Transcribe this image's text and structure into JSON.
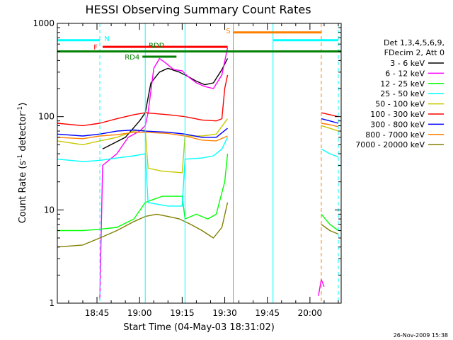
{
  "chart_data": {
    "type": "line",
    "title": "HESSI Observing Summary Count Rates",
    "xlabel": "Start Time (04-May-03 18:31:02)",
    "ylabel_parts": [
      "Count Rate (s",
      "-1",
      " detector",
      "-1",
      ")"
    ],
    "ylabel": "Count Rate (s^-1 detector^-1)",
    "yscale": "log",
    "ylim": [
      1,
      1000
    ],
    "xlim": [
      "18:31:02",
      "20:11:00"
    ],
    "x_ticks": [
      "18:45",
      "19:00",
      "19:15",
      "19:30",
      "19:45",
      "20:00"
    ],
    "y_ticks": [
      "1",
      "10",
      "100",
      "1000"
    ],
    "timestamp": "26-Nov-2009 15:38",
    "legend": {
      "position": "right",
      "header": [
        "Det 1,3,4,5,6,9,",
        "FDecim 2, Att 0"
      ],
      "entries": [
        {
          "label": "3 - 6 keV",
          "color": "#000000"
        },
        {
          "label": "6 - 12 keV",
          "color": "#ff00ff"
        },
        {
          "label": "12 - 25 keV",
          "color": "#00ff00"
        },
        {
          "label": "25 - 50 keV",
          "color": "#00ffff"
        },
        {
          "label": "50 - 100 keV",
          "color": "#c8c800"
        },
        {
          "label": "100 - 300 keV",
          "color": "#ff0000"
        },
        {
          "label": "300 - 800 keV",
          "color": "#0000ff"
        },
        {
          "label": "800 - 7000 keV",
          "color": "#ff8000"
        },
        {
          "label": "7000 - 20000 keV",
          "color": "#808000"
        }
      ]
    },
    "flags": [
      {
        "label": "N",
        "color": "#00ffff",
        "level": 660,
        "spans": [
          [
            "18:31",
            "18:46"
          ],
          [
            "19:47",
            "20:10"
          ]
        ]
      },
      {
        "label": "F",
        "color": "#ff0000",
        "level": 560,
        "spans": [
          [
            "18:47",
            "19:31"
          ]
        ]
      },
      {
        "label": "S",
        "color": "#ff8000",
        "level": 800,
        "spans": [
          [
            "19:33",
            "20:04"
          ]
        ]
      },
      {
        "label": "RDD",
        "color": "#008000",
        "level": 500,
        "spans": [
          [
            "18:31",
            "20:11"
          ]
        ]
      },
      {
        "label": "RD4",
        "color": "#008000",
        "level": 440,
        "spans": [
          [
            "19:01",
            "19:13"
          ]
        ]
      }
    ],
    "vlines": [
      {
        "time": "18:46",
        "color": "#00ffff",
        "style": "dashed"
      },
      {
        "time": "19:02",
        "color": "#00ffff",
        "style": "solid"
      },
      {
        "time": "19:16",
        "color": "#00ffff",
        "style": "solid"
      },
      {
        "time": "19:33",
        "color": "#ff8000",
        "style": "solid"
      },
      {
        "time": "19:47",
        "color": "#00ffff",
        "style": "solid"
      },
      {
        "time": "20:04",
        "color": "#ff8000",
        "style": "dashed"
      },
      {
        "time": "20:10",
        "color": "#00ffff",
        "style": "dashed"
      }
    ],
    "series": [
      {
        "name": "3 - 6 keV",
        "color": "#000000",
        "segments": [
          [
            [
              "18:47",
              45
            ],
            [
              "18:55",
              60
            ],
            [
              "19:00",
              90
            ],
            [
              "19:02",
              110
            ],
            [
              "19:04",
              230
            ],
            [
              "19:07",
              300
            ],
            [
              "19:10",
              330
            ],
            [
              "19:14",
              300
            ],
            [
              "19:17",
              270
            ],
            [
              "19:20",
              240
            ],
            [
              "19:23",
              220
            ],
            [
              "19:26",
              230
            ],
            [
              "19:29",
              320
            ],
            [
              "19:31",
              420
            ]
          ]
        ]
      },
      {
        "name": "6 - 12 keV",
        "color": "#ff00ff",
        "segments": [
          [
            [
              "18:46",
              1.1
            ],
            [
              "18:47",
              30
            ],
            [
              "18:52",
              40
            ],
            [
              "18:56",
              60
            ],
            [
              "19:00",
              70
            ],
            [
              "19:02",
              80
            ],
            [
              "19:03",
              110
            ],
            [
              "19:05",
              330
            ],
            [
              "19:07",
              420
            ],
            [
              "19:09",
              380
            ],
            [
              "19:12",
              320
            ],
            [
              "19:15",
              310
            ],
            [
              "19:17",
              270
            ],
            [
              "19:20",
              230
            ],
            [
              "19:23",
              210
            ],
            [
              "19:26",
              200
            ],
            [
              "19:29",
              280
            ],
            [
              "19:31",
              550
            ]
          ],
          [
            [
              "20:03",
              1.2
            ],
            [
              "20:04",
              1.8
            ],
            [
              "20:05",
              1.5
            ]
          ]
        ]
      },
      {
        "name": "12 - 25 keV",
        "color": "#00ff00",
        "segments": [
          [
            [
              "18:31",
              6.0
            ],
            [
              "18:40",
              6.0
            ],
            [
              "18:46",
              6.2
            ],
            [
              "18:52",
              6.5
            ],
            [
              "18:58",
              8.0
            ],
            [
              "19:02",
              12
            ],
            [
              "19:05",
              13
            ],
            [
              "19:08",
              14
            ],
            [
              "19:12",
              14
            ],
            [
              "19:15",
              14
            ],
            [
              "19:16",
              8
            ],
            [
              "19:20",
              9
            ],
            [
              "19:24",
              8
            ],
            [
              "19:27",
              9
            ],
            [
              "19:30",
              20
            ],
            [
              "19:31",
              40
            ]
          ],
          [
            [
              "20:04",
              9
            ],
            [
              "20:07",
              7
            ],
            [
              "20:10",
              6
            ]
          ]
        ]
      },
      {
        "name": "25 - 50 keV",
        "color": "#00ffff",
        "segments": [
          [
            [
              "18:31",
              35
            ],
            [
              "18:40",
              33
            ],
            [
              "18:46",
              34
            ],
            [
              "18:52",
              36
            ],
            [
              "18:58",
              38
            ],
            [
              "19:02",
              40
            ],
            [
              "19:03",
              12
            ],
            [
              "19:10",
              11
            ],
            [
              "19:15",
              11
            ],
            [
              "19:16",
              35
            ],
            [
              "19:22",
              36
            ],
            [
              "19:26",
              38
            ],
            [
              "19:29",
              45
            ],
            [
              "19:31",
              60
            ]
          ],
          [
            [
              "20:04",
              45
            ],
            [
              "20:07",
              40
            ],
            [
              "20:10",
              37
            ]
          ]
        ]
      },
      {
        "name": "50 - 100 keV",
        "color": "#c8c800",
        "segments": [
          [
            [
              "18:31",
              55
            ],
            [
              "18:40",
              50
            ],
            [
              "18:46",
              55
            ],
            [
              "18:52",
              60
            ],
            [
              "18:58",
              70
            ],
            [
              "19:02",
              72
            ],
            [
              "19:03",
              28
            ],
            [
              "19:08",
              26
            ],
            [
              "19:15",
              25
            ],
            [
              "19:16",
              62
            ],
            [
              "19:22",
              62
            ],
            [
              "19:27",
              65
            ],
            [
              "19:31",
              95
            ]
          ],
          [
            [
              "20:04",
              80
            ],
            [
              "20:07",
              75
            ],
            [
              "20:10",
              70
            ]
          ]
        ]
      },
      {
        "name": "100 - 300 keV",
        "color": "#ff0000",
        "segments": [
          [
            [
              "18:31",
              85
            ],
            [
              "18:40",
              80
            ],
            [
              "18:46",
              85
            ],
            [
              "18:52",
              95
            ],
            [
              "18:58",
              105
            ],
            [
              "19:02",
              110
            ],
            [
              "19:10",
              105
            ],
            [
              "19:16",
              100
            ],
            [
              "19:22",
              92
            ],
            [
              "19:27",
              90
            ],
            [
              "19:29",
              95
            ],
            [
              "19:30",
              200
            ],
            [
              "19:31",
              280
            ]
          ],
          [
            [
              "20:04",
              110
            ],
            [
              "20:07",
              105
            ],
            [
              "20:10",
              100
            ]
          ]
        ]
      },
      {
        "name": "300 - 800 keV",
        "color": "#0000ff",
        "segments": [
          [
            [
              "18:31",
              65
            ],
            [
              "18:40",
              62
            ],
            [
              "18:46",
              65
            ],
            [
              "18:52",
              70
            ],
            [
              "18:58",
              72
            ],
            [
              "19:02",
              70
            ],
            [
              "19:10",
              68
            ],
            [
              "19:16",
              65
            ],
            [
              "19:22",
              60
            ],
            [
              "19:27",
              60
            ],
            [
              "19:31",
              75
            ]
          ],
          [
            [
              "20:04",
              95
            ],
            [
              "20:07",
              90
            ],
            [
              "20:10",
              85
            ]
          ]
        ]
      },
      {
        "name": "800 - 7000 keV",
        "color": "#ff8000",
        "segments": [
          [
            [
              "18:31",
              60
            ],
            [
              "18:40",
              58
            ],
            [
              "18:46",
              62
            ],
            [
              "18:52",
              64
            ],
            [
              "18:58",
              68
            ],
            [
              "19:02",
              68
            ],
            [
              "19:10",
              66
            ],
            [
              "19:16",
              62
            ],
            [
              "19:22",
              56
            ],
            [
              "19:27",
              55
            ],
            [
              "19:31",
              62
            ]
          ],
          [
            [
              "20:04",
              85
            ],
            [
              "20:07",
              82
            ],
            [
              "20:10",
              78
            ]
          ]
        ]
      },
      {
        "name": "7000 - 20000 keV",
        "color": "#808000",
        "segments": [
          [
            [
              "18:31",
              4.0
            ],
            [
              "18:40",
              4.2
            ],
            [
              "18:46",
              5.0
            ],
            [
              "18:52",
              6.0
            ],
            [
              "18:58",
              7.5
            ],
            [
              "19:02",
              8.5
            ],
            [
              "19:06",
              9.0
            ],
            [
              "19:10",
              8.5
            ],
            [
              "19:14",
              8.0
            ],
            [
              "19:18",
              7.0
            ],
            [
              "19:22",
              6.0
            ],
            [
              "19:26",
              5.0
            ],
            [
              "19:29",
              6.5
            ],
            [
              "19:31",
              12
            ]
          ],
          [
            [
              "20:04",
              7.0
            ],
            [
              "20:07",
              6.0
            ],
            [
              "20:10",
              5.5
            ]
          ]
        ]
      }
    ]
  }
}
